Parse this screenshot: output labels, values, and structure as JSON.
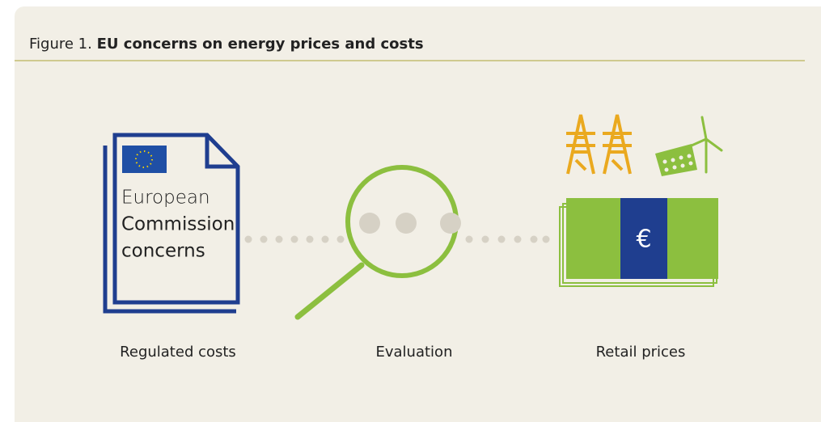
{
  "header": {
    "figure_number": "Figure 1.",
    "title": "EU concerns on energy prices and costs"
  },
  "document": {
    "lines": [
      "European",
      "Commission",
      "concerns"
    ]
  },
  "currency_symbol": "€",
  "labels": [
    "Regulated costs",
    "Evaluation",
    "Retail prices"
  ]
}
